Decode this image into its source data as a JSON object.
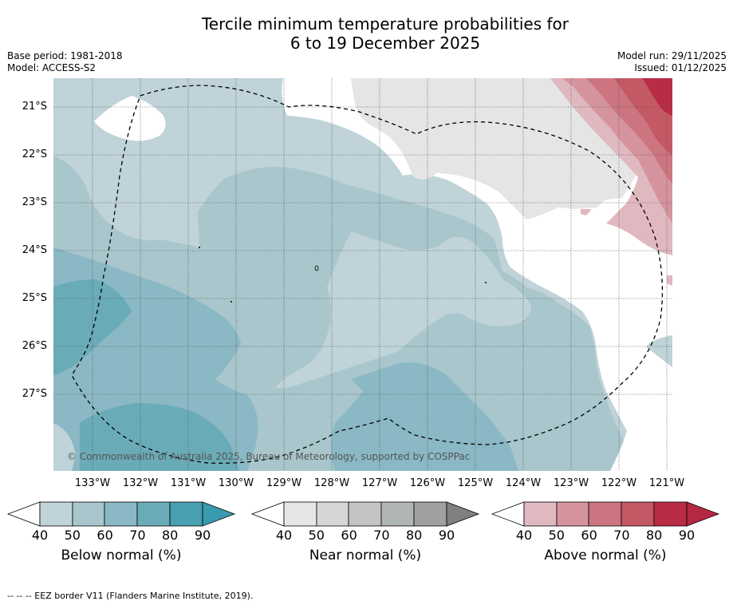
{
  "title": {
    "line1": "Tercile minimum temperature probabilities for",
    "line2": "6 to 19 December 2025"
  },
  "meta": {
    "base_period": "Base period: 1981-2018",
    "model": "Model: ACCESS-S2",
    "model_run": "Model run: 29/11/2025",
    "issued": "Issued: 01/12/2025"
  },
  "map": {
    "latitude_labels": [
      "21°S",
      "22°S",
      "23°S",
      "24°S",
      "25°S",
      "26°S",
      "27°S"
    ],
    "longitude_labels": [
      "133°W",
      "132°W",
      "131°W",
      "130°W",
      "129°W",
      "128°W",
      "127°W",
      "126°W",
      "125°W",
      "124°W",
      "123°W",
      "122°W",
      "121°W"
    ],
    "copyright": "© Commonwealth of Australia 2025, Bureau of Meteorology, supported by COSPPac",
    "colors": {
      "below": [
        "#bfd3d9",
        "#a8c6cb",
        "#8ab8c4",
        "#6aabb8",
        "#479fb0"
      ],
      "near": [
        "#e5e5e5",
        "#d6d6d6",
        "#c4c4c4",
        "#b0b5b5",
        "#a0a0a0",
        "#808080"
      ],
      "above": [
        "#e0b8bf",
        "#d5949d",
        "#cc7580",
        "#c45865",
        "#b92c45",
        "#b52843"
      ]
    }
  },
  "colorbars": [
    {
      "label": "Below normal (%)",
      "ticks": [
        "40",
        "50",
        "60",
        "70",
        "80",
        "90"
      ]
    },
    {
      "label": "Near normal (%)",
      "ticks": [
        "40",
        "50",
        "60",
        "70",
        "80",
        "90"
      ]
    },
    {
      "label": "Above normal (%)",
      "ticks": [
        "40",
        "50",
        "60",
        "70",
        "80",
        "90"
      ]
    }
  ],
  "footer": "--  --  -- EEZ border V11 (Flanders Marine Institute, 2019)."
}
